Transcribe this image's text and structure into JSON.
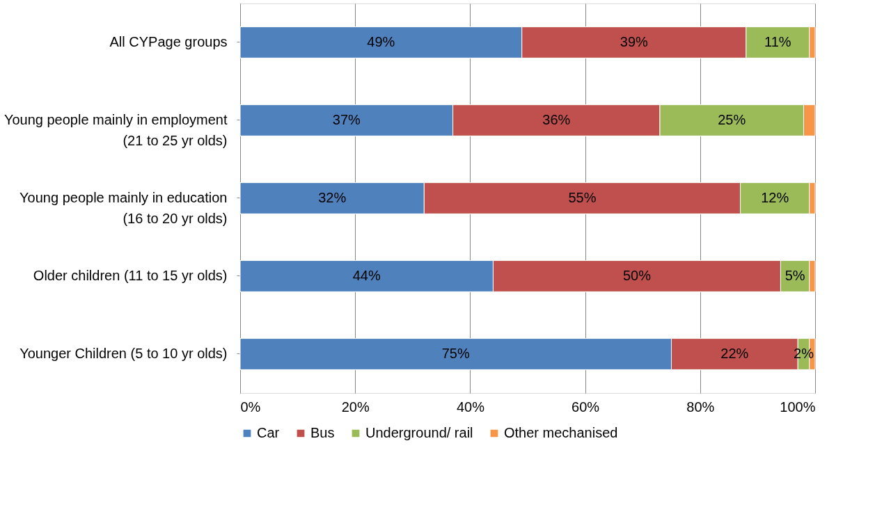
{
  "chart_data": {
    "type": "bar",
    "orientation": "horizontal",
    "stacked": true,
    "categories": [
      "All CYPage groups",
      "Young people mainly in employment (21 to 25 yr olds)",
      "Young people mainly in education (16 to 20 yr olds)",
      "Older children (11 to 15 yr olds)",
      "Younger Children (5 to 10 yr olds)"
    ],
    "series": [
      {
        "name": "Car",
        "color": "#4f81bd",
        "values": [
          49,
          37,
          32,
          44,
          75
        ],
        "value_labels": [
          "49%",
          "37%",
          "32%",
          "44%",
          "75%"
        ]
      },
      {
        "name": "Bus",
        "color": "#c0504d",
        "values": [
          39,
          36,
          55,
          50,
          22
        ],
        "value_labels": [
          "39%",
          "36%",
          "55%",
          "50%",
          "22%"
        ]
      },
      {
        "name": "Underground/ rail",
        "color": "#9bbb59",
        "values": [
          11,
          25,
          12,
          5,
          2
        ],
        "value_labels": [
          "11%",
          "25%",
          "12%",
          "5%",
          "2%"
        ]
      },
      {
        "name": "Other mechanised",
        "color": "#f79646",
        "values": [
          1,
          2,
          1,
          1,
          1
        ],
        "value_labels": [
          null,
          null,
          null,
          null,
          null
        ]
      }
    ],
    "xlim": [
      0,
      100
    ],
    "xticks": [
      {
        "value": 0,
        "label": "0%"
      },
      {
        "value": 20,
        "label": "20%"
      },
      {
        "value": 40,
        "label": "40%"
      },
      {
        "value": 60,
        "label": "60%"
      },
      {
        "value": 80,
        "label": "80%"
      },
      {
        "value": 100,
        "label": "100%"
      }
    ],
    "grid": "x",
    "legend": "bottom"
  }
}
